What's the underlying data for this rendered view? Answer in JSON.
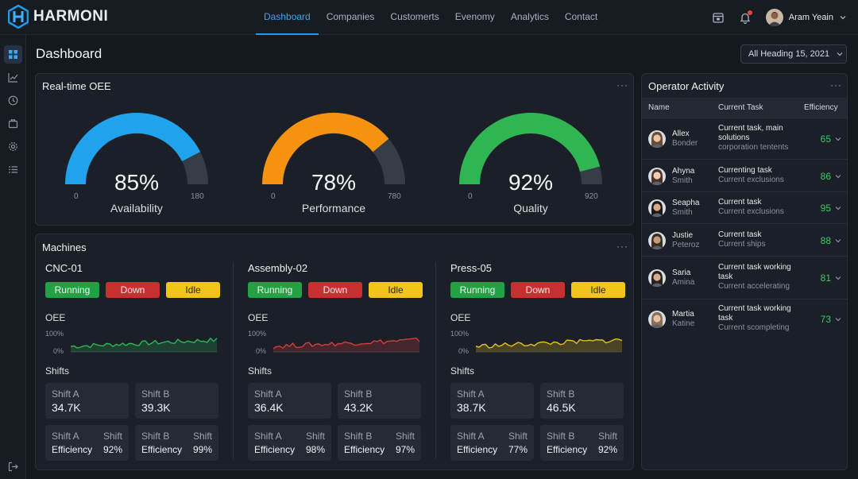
{
  "app": {
    "brand": "HARMONI"
  },
  "nav": {
    "items": [
      {
        "label": "Dashboard",
        "active": true
      },
      {
        "label": "Companies",
        "active": false
      },
      {
        "label": "Customerts",
        "active": false
      },
      {
        "label": "Evenomy",
        "active": false
      },
      {
        "label": "Analytics",
        "active": false
      },
      {
        "label": "Contact",
        "active": false
      }
    ]
  },
  "user": {
    "name": "Aram Yeain"
  },
  "sidebar": {
    "icons": [
      "grid-icon",
      "chart-icon",
      "clock-icon",
      "briefcase-icon",
      "gear-icon",
      "list-icon",
      "logout-icon"
    ]
  },
  "page": {
    "title": "Dashboard",
    "date_filter": "All Heading 15, 2021"
  },
  "oee": {
    "title": "Real-time OEE",
    "more": "···",
    "gauges": [
      {
        "value": "85%",
        "label": "Availability",
        "min": "0",
        "max": "180",
        "fraction": 0.85,
        "color": "#1ea3ec"
      },
      {
        "value": "78%",
        "label": "Performance",
        "min": "0",
        "max": "780",
        "fraction": 0.78,
        "color": "#f5930f"
      },
      {
        "value": "92%",
        "label": "Quality",
        "min": "0",
        "max": "920",
        "fraction": 0.92,
        "color": "#2fb552"
      }
    ]
  },
  "machines": {
    "title": "Machines",
    "more": "···",
    "oee_label": "OEE",
    "axis_top": "100%",
    "axis_bottom": "0%",
    "shifts_label": "Shifts",
    "status_labels": {
      "running": "Running",
      "down": "Down",
      "idle": "Idle"
    },
    "list": [
      {
        "name": "CNC-01",
        "spark_color": "#2fb552",
        "shift_a": {
          "label": "Shift A",
          "value": "34.7K"
        },
        "shift_b": {
          "label": "Shift B",
          "value": "39.3K"
        },
        "eff_a": {
          "label": "Shift A",
          "right": "Shift",
          "name": "Efficiency",
          "value": "92%"
        },
        "eff_b": {
          "label": "Shift B",
          "right": "Shift",
          "name": "Efficiency",
          "value": "99%"
        }
      },
      {
        "name": "Assembly-02",
        "spark_color": "#d83b3b",
        "shift_a": {
          "label": "Shift A",
          "value": "36.4K"
        },
        "shift_b": {
          "label": "Shift B",
          "value": "43.2K"
        },
        "eff_a": {
          "label": "Shift A",
          "right": "Shift",
          "name": "Efficiency",
          "value": "98%"
        },
        "eff_b": {
          "label": "Shift B",
          "right": "Shift",
          "name": "Efficiency",
          "value": "97%"
        }
      },
      {
        "name": "Press-05",
        "spark_color": "#e6c21c",
        "shift_a": {
          "label": "Shift A",
          "value": "38.7K"
        },
        "shift_b": {
          "label": "Shift B",
          "value": "46.5K"
        },
        "eff_a": {
          "label": "Shift A",
          "right": "Shift",
          "name": "Efficiency",
          "value": "77%"
        },
        "eff_b": {
          "label": "Shift B",
          "right": "Shift",
          "name": "Efficiency",
          "value": "92%"
        }
      }
    ]
  },
  "operators": {
    "title": "Operator Activity",
    "more": "···",
    "headers": {
      "name": "Name",
      "task": "Current Task",
      "efficiency": "Efficiency"
    },
    "rows": [
      {
        "first": "Allex",
        "last": "Bonder",
        "task1": "Current task, main",
        "task2": "solutions",
        "task3": "corporation tentents",
        "efficiency": "65"
      },
      {
        "first": "Ahyna",
        "last": "Smith",
        "task1": "Currenting task",
        "task2": "",
        "task3": "Current exclusions",
        "efficiency": "86"
      },
      {
        "first": "Seapha",
        "last": "Smith",
        "task1": "Current task",
        "task2": "",
        "task3": "Current exclusions",
        "efficiency": "95"
      },
      {
        "first": "Justie",
        "last": "Peteroz",
        "task1": "Current task",
        "task2": "",
        "task3": "Current ships",
        "efficiency": "88"
      },
      {
        "first": "Saria",
        "last": "Amina",
        "task1": "Current task working",
        "task2": "task",
        "task3": "Current accelerating",
        "efficiency": "81"
      },
      {
        "first": "Martia",
        "last": "Katine",
        "task1": "Current task working",
        "task2": "task",
        "task3": "Current scompleting",
        "efficiency": "73"
      }
    ]
  }
}
